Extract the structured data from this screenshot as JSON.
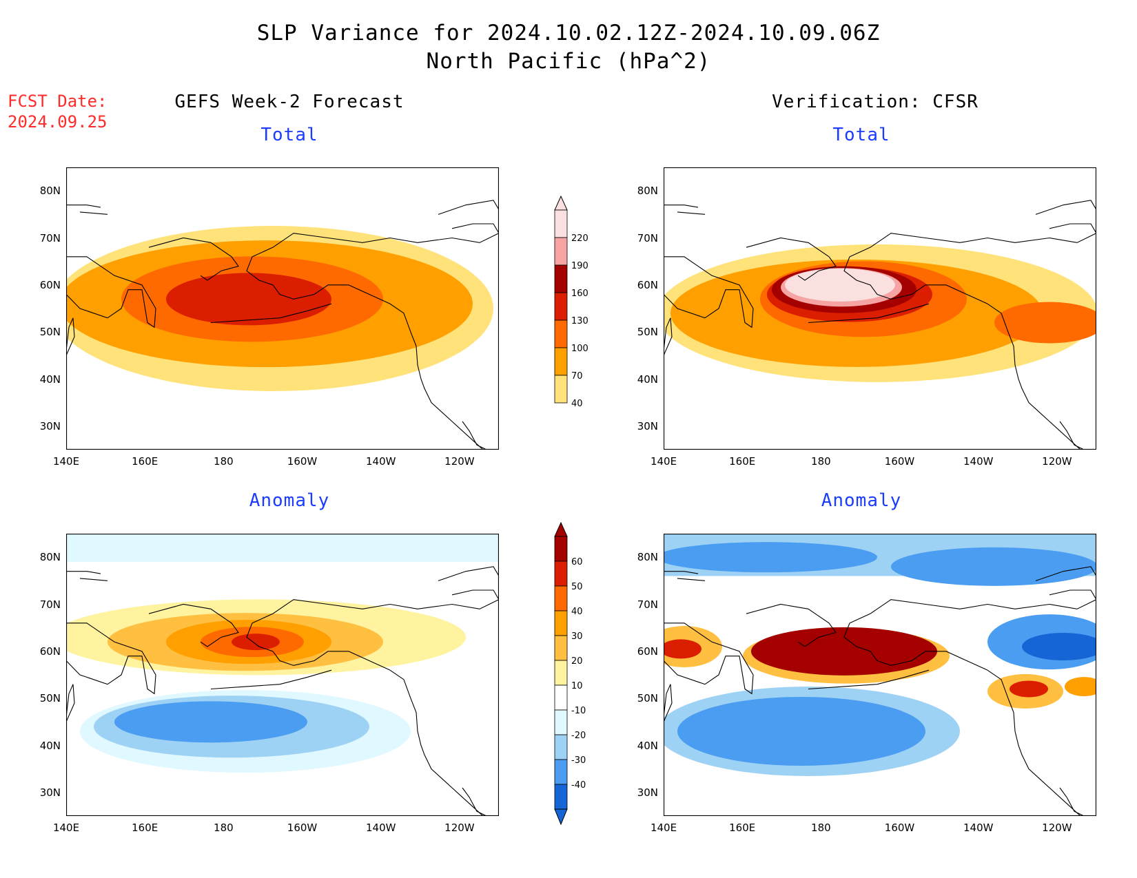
{
  "title": {
    "line1": "SLP Variance for 2024.10.02.12Z-2024.10.09.06Z",
    "line2": "North Pacific (hPa^2)"
  },
  "fcst_date": {
    "label": "FCST Date:",
    "value": "2024.09.25"
  },
  "columns": {
    "left": "GEFS Week-2 Forecast",
    "right": "Verification: CFSR"
  },
  "panels": {
    "top_left": "Total",
    "top_right": "Total",
    "bottom_left": "Anomaly",
    "bottom_right": "Anomaly"
  },
  "axes": {
    "x_ticks": [
      "140E",
      "160E",
      "180",
      "160W",
      "140W",
      "120W"
    ],
    "y_ticks": [
      "80N",
      "70N",
      "60N",
      "50N",
      "40N",
      "30N"
    ],
    "lon_range": "140E to 110W",
    "lat_range": "25N to 85N"
  },
  "colorbars": {
    "total": {
      "levels": [
        "220",
        "190",
        "160",
        "130",
        "100",
        "70",
        "40"
      ],
      "colors": [
        "#fbe0e0",
        "#f5a3a3",
        "#a50000",
        "#dc1e00",
        "#ff6a00",
        "#ff9f00",
        "#ffe37a"
      ]
    },
    "anomaly": {
      "levels": [
        "60",
        "50",
        "40",
        "30",
        "20",
        "10",
        "-10",
        "-20",
        "-30",
        "-40"
      ],
      "colors": [
        "#a50000",
        "#dc1e00",
        "#ff6a00",
        "#ff9f00",
        "#ffbf40",
        "#fff3a0",
        "#ffffff",
        "#e0f8ff",
        "#9ed2f5",
        "#4a9df0",
        "#1565d6"
      ]
    }
  }
}
